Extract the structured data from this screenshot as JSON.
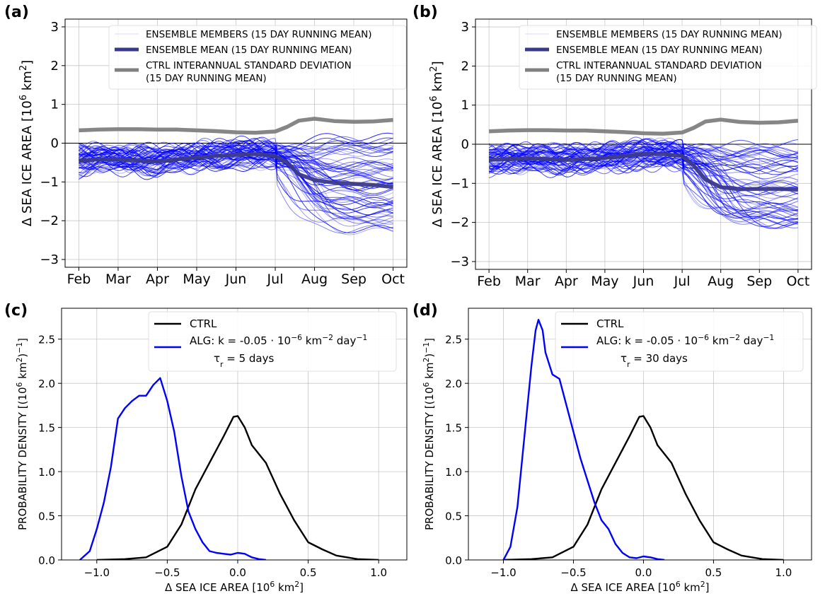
{
  "chart_data": [
    {
      "panel": "(a)",
      "type": "line",
      "xlabel": "",
      "ylabel": "Δ SEA ICE AREA [10⁶ km²]",
      "x_tick_labels": [
        "Feb",
        "Mar",
        "Apr",
        "May",
        "Jun",
        "Jul",
        "Aug",
        "Sep",
        "Oct"
      ],
      "x_months": [
        0,
        1,
        2,
        3,
        4,
        5,
        6,
        7,
        8
      ],
      "ylim": [
        -3.2,
        3.2
      ],
      "y_ticks": [
        -3,
        -2,
        -1,
        0,
        1,
        2,
        3
      ],
      "grid": true,
      "legend_position": "top-right",
      "legend": [
        "ENSEMBLE MEMBERS (15 DAY RUNNING MEAN)",
        "ENSEMBLE MEAN (15 DAY RUNNING MEAN)",
        "CTRL INTERANNUAL STANDARD DEVIATION",
        "(15 DAY RUNNING MEAN)"
      ],
      "series": [
        {
          "name": "ENSEMBLE MEAN (15 DAY RUNNING MEAN)",
          "color": "#3b3a8a",
          "x": [
            0,
            0.5,
            1,
            1.5,
            2,
            2.5,
            3,
            3.5,
            4,
            4.5,
            5,
            5.3,
            5.6,
            6,
            6.5,
            7,
            7.5,
            8
          ],
          "y": [
            -0.45,
            -0.42,
            -0.42,
            -0.45,
            -0.47,
            -0.42,
            -0.37,
            -0.33,
            -0.3,
            -0.28,
            -0.33,
            -0.5,
            -0.8,
            -0.95,
            -1.02,
            -1.05,
            -1.08,
            -1.13
          ]
        },
        {
          "name": "CTRL INTERANNUAL STANDARD DEVIATION",
          "color": "#808080",
          "x": [
            0,
            0.5,
            1,
            1.5,
            2,
            2.5,
            3,
            3.5,
            4,
            4.5,
            5,
            5.3,
            5.6,
            6,
            6.5,
            7,
            7.5,
            8
          ],
          "y": [
            0.33,
            0.35,
            0.36,
            0.36,
            0.35,
            0.35,
            0.33,
            0.31,
            0.28,
            0.27,
            0.3,
            0.42,
            0.58,
            0.63,
            0.57,
            0.55,
            0.56,
            0.6
          ]
        }
      ],
      "members": {
        "count": 60,
        "color": "#0000ff",
        "spread_spring": 0.3,
        "final_range": [
          -2.3,
          0.2
        ]
      }
    },
    {
      "panel": "(b)",
      "type": "line",
      "xlabel": "",
      "ylabel": "Δ SEA ICE AREA [10⁶ km²]",
      "x_tick_labels": [
        "Feb",
        "Mar",
        "Apr",
        "May",
        "Jun",
        "Jul",
        "Aug",
        "Sep",
        "Oct"
      ],
      "x_months": [
        0,
        1,
        2,
        3,
        4,
        5,
        6,
        7,
        8
      ],
      "ylim": [
        -3.2,
        3.2
      ],
      "y_ticks": [
        -3,
        -2,
        -1,
        0,
        1,
        2,
        3
      ],
      "grid": true,
      "legend_position": "top-right",
      "legend": [
        "ENSEMBLE MEMBERS (15 DAY RUNNING MEAN)",
        "ENSEMBLE MEAN (15 DAY RUNNING MEAN)",
        "CTRL INTERANNUAL STANDARD DEVIATION",
        "(15 DAY RUNNING MEAN)"
      ],
      "series": [
        {
          "name": "ENSEMBLE MEAN (15 DAY RUNNING MEAN)",
          "color": "#3b3a8a",
          "x": [
            0,
            0.5,
            1,
            1.5,
            2,
            2.5,
            3,
            3.5,
            4,
            4.5,
            5,
            5.3,
            5.6,
            6,
            6.5,
            7,
            7.5,
            8
          ],
          "y": [
            -0.4,
            -0.38,
            -0.36,
            -0.38,
            -0.4,
            -0.38,
            -0.35,
            -0.3,
            -0.25,
            -0.25,
            -0.3,
            -0.55,
            -0.9,
            -1.1,
            -1.15,
            -1.14,
            -1.14,
            -1.16
          ]
        },
        {
          "name": "CTRL INTERANNUAL STANDARD DEVIATION",
          "color": "#808080",
          "x": [
            0,
            0.5,
            1,
            1.5,
            2,
            2.5,
            3,
            3.5,
            4,
            4.5,
            5,
            5.3,
            5.6,
            6,
            6.5,
            7,
            7.5,
            8
          ],
          "y": [
            0.33,
            0.35,
            0.36,
            0.36,
            0.35,
            0.35,
            0.33,
            0.31,
            0.28,
            0.27,
            0.3,
            0.42,
            0.58,
            0.63,
            0.57,
            0.55,
            0.56,
            0.6
          ]
        }
      ],
      "members": {
        "count": 60,
        "color": "#0000ff",
        "spread_spring": 0.28,
        "final_range": [
          -2.1,
          0.1
        ]
      }
    },
    {
      "panel": "(c)",
      "type": "line",
      "xlabel": "Δ SEA ICE AREA [10⁶ km²]",
      "ylabel": "PROBABILITY DENSITY [(10⁶ km²)⁻¹]",
      "xlim": [
        -1.25,
        1.2
      ],
      "ylim": [
        0,
        2.85
      ],
      "x_ticks": [
        -1.0,
        -0.5,
        0.0,
        0.5,
        1.0
      ],
      "x_tick_labels": [
        "−1.0",
        "−0.5",
        "0.0",
        "0.5",
        "1.0"
      ],
      "y_ticks": [
        0,
        0.5,
        1,
        1.5,
        2,
        2.5
      ],
      "y_tick_labels": [
        "0.0",
        "0.5",
        "1.0",
        "1.5",
        "2.0",
        "2.5"
      ],
      "grid": true,
      "legend_position": "top-right",
      "legend": [
        "CTRL",
        "ALG: k = -0.05 · 10⁻⁶ km⁻² day⁻¹",
        "τr = 5 days"
      ],
      "series": [
        {
          "name": "CTRL",
          "color": "#000000",
          "x": [
            -1.0,
            -0.8,
            -0.65,
            -0.5,
            -0.4,
            -0.3,
            -0.2,
            -0.1,
            -0.03,
            0.0,
            0.05,
            0.1,
            0.2,
            0.3,
            0.4,
            0.5,
            0.6,
            0.7,
            0.85,
            1.0
          ],
          "y": [
            0.0,
            0.01,
            0.03,
            0.15,
            0.4,
            0.8,
            1.1,
            1.4,
            1.62,
            1.63,
            1.5,
            1.3,
            1.1,
            0.75,
            0.45,
            0.2,
            0.12,
            0.05,
            0.01,
            0.0
          ]
        },
        {
          "name": "ALG: k = -0.05 · 10⁻⁶ km⁻² day⁻¹",
          "color": "#0000ff",
          "x": [
            -1.12,
            -1.05,
            -1.0,
            -0.95,
            -0.9,
            -0.85,
            -0.8,
            -0.75,
            -0.7,
            -0.65,
            -0.6,
            -0.55,
            -0.5,
            -0.45,
            -0.4,
            -0.35,
            -0.3,
            -0.25,
            -0.2,
            -0.15,
            -0.1,
            -0.05,
            0.0,
            0.05,
            0.1,
            0.15,
            0.2
          ],
          "y": [
            0.0,
            0.1,
            0.35,
            0.65,
            1.05,
            1.6,
            1.72,
            1.8,
            1.86,
            1.86,
            1.98,
            2.06,
            1.8,
            1.45,
            0.95,
            0.55,
            0.35,
            0.2,
            0.1,
            0.08,
            0.07,
            0.06,
            0.08,
            0.07,
            0.03,
            0.01,
            0.0
          ]
        }
      ]
    },
    {
      "panel": "(d)",
      "type": "line",
      "xlabel": "Δ SEA ICE AREA [10⁶ km²]",
      "ylabel": "PROBABILITY DENSITY [(10⁶ km²)⁻¹]",
      "xlim": [
        -1.25,
        1.2
      ],
      "ylim": [
        0,
        2.85
      ],
      "x_ticks": [
        -1.0,
        -0.5,
        0.0,
        0.5,
        1.0
      ],
      "x_tick_labels": [
        "−1.0",
        "−0.5",
        "0.0",
        "0.5",
        "1.0"
      ],
      "y_ticks": [
        0,
        0.5,
        1,
        1.5,
        2,
        2.5
      ],
      "y_tick_labels": [
        "0.0",
        "0.5",
        "1.0",
        "1.5",
        "2.0",
        "2.5"
      ],
      "grid": true,
      "legend_position": "top-right",
      "legend": [
        "CTRL",
        "ALG: k = -0.05 · 10⁻⁶ km⁻² day⁻¹",
        "τr = 30 days"
      ],
      "series": [
        {
          "name": "CTRL",
          "color": "#000000",
          "x": [
            -1.0,
            -0.8,
            -0.65,
            -0.5,
            -0.4,
            -0.3,
            -0.2,
            -0.1,
            -0.03,
            0.0,
            0.05,
            0.1,
            0.2,
            0.3,
            0.4,
            0.5,
            0.6,
            0.7,
            0.85,
            1.0
          ],
          "y": [
            0.0,
            0.01,
            0.03,
            0.15,
            0.4,
            0.8,
            1.1,
            1.4,
            1.62,
            1.63,
            1.5,
            1.3,
            1.1,
            0.75,
            0.45,
            0.2,
            0.12,
            0.05,
            0.01,
            0.0
          ]
        },
        {
          "name": "ALG: k = -0.05 · 10⁻⁶ km⁻² day⁻¹",
          "color": "#0000ff",
          "x": [
            -1.0,
            -0.95,
            -0.9,
            -0.85,
            -0.8,
            -0.77,
            -0.75,
            -0.72,
            -0.7,
            -0.65,
            -0.6,
            -0.55,
            -0.5,
            -0.45,
            -0.4,
            -0.35,
            -0.3,
            -0.25,
            -0.2,
            -0.15,
            -0.1,
            -0.05,
            0.0,
            0.05,
            0.1,
            0.15
          ],
          "y": [
            0.0,
            0.15,
            0.6,
            1.4,
            2.2,
            2.6,
            2.72,
            2.6,
            2.35,
            2.1,
            2.05,
            1.75,
            1.45,
            1.15,
            0.9,
            0.65,
            0.45,
            0.35,
            0.18,
            0.08,
            0.03,
            0.02,
            0.04,
            0.03,
            0.01,
            0.0
          ]
        }
      ]
    }
  ]
}
